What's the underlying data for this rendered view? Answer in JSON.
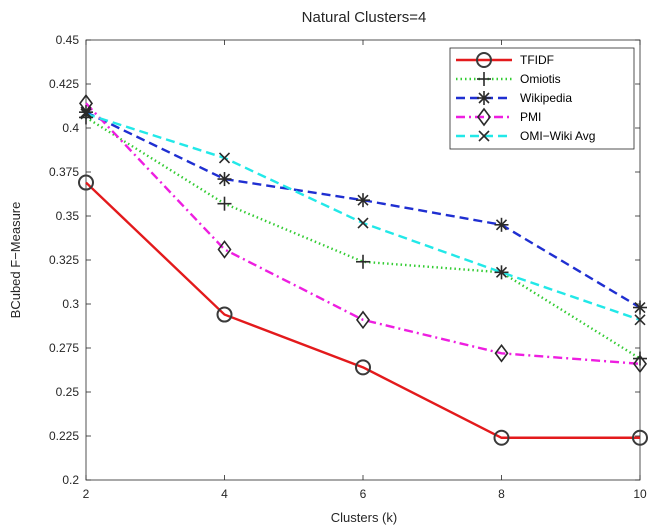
{
  "chart_data": {
    "type": "line",
    "title": "Natural Clusters=4",
    "xlabel": "Clusters (k)",
    "ylabel": "BCubed F−Measure",
    "xlim": [
      2,
      10
    ],
    "ylim": [
      0.2,
      0.45
    ],
    "xticks": [
      2,
      4,
      6,
      8,
      10
    ],
    "xtick_labels": [
      "2",
      "4",
      "6",
      "8",
      "10"
    ],
    "yticks": [
      0.2,
      0.225,
      0.25,
      0.275,
      0.3,
      0.325,
      0.35,
      0.375,
      0.4,
      0.425,
      0.45
    ],
    "ytick_labels": [
      "0.2",
      "0.225",
      "0.25",
      "0.275",
      "0.3",
      "0.325",
      "0.35",
      "0.375",
      "0.4",
      "0.425",
      "0.45"
    ],
    "grid": false,
    "legend_position": "top-right",
    "x": [
      2,
      4,
      6,
      8,
      10
    ],
    "series": [
      {
        "name": "TFIDF",
        "values": [
          0.369,
          0.294,
          0.264,
          0.224,
          0.224
        ],
        "color": "#e31a1c",
        "dash": "solid",
        "marker": "circle"
      },
      {
        "name": "Omiotis",
        "values": [
          0.406,
          0.357,
          0.324,
          0.318,
          0.269
        ],
        "color": "#33cc33",
        "dash": "dotted",
        "marker": "plus"
      },
      {
        "name": "Wikipedia",
        "values": [
          0.409,
          0.371,
          0.359,
          0.345,
          0.298
        ],
        "color": "#1f2fd1",
        "dash": "dashed",
        "marker": "star"
      },
      {
        "name": "PMI",
        "values": [
          0.414,
          0.331,
          0.291,
          0.272,
          0.266
        ],
        "color": "#ee1ee0",
        "dash": "dashdot",
        "marker": "diamond"
      },
      {
        "name": "OMI−Wiki Avg",
        "values": [
          0.408,
          0.383,
          0.346,
          0.318,
          0.291
        ],
        "color": "#22e8e8",
        "dash": "dashed",
        "marker": "x"
      }
    ]
  }
}
